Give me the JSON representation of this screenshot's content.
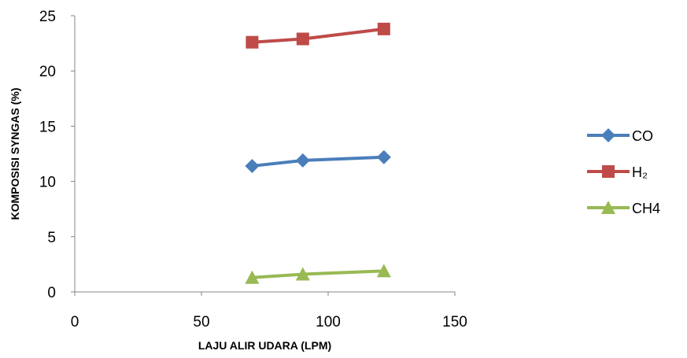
{
  "chart_data": {
    "type": "line",
    "title": "",
    "xlabel": "LAJU ALIR UDARA (LPM)",
    "ylabel": "KOMPOSISI SYNGAS (%)",
    "xlim": [
      0,
      150
    ],
    "ylim": [
      0,
      25
    ],
    "xticks": [
      "0",
      "50",
      "100",
      "150"
    ],
    "yticks": [
      "0",
      "5",
      "10",
      "15",
      "20",
      "25"
    ],
    "grid": false,
    "legend_position": "right",
    "series": [
      {
        "name": "CO",
        "color": "#4a7ebb",
        "marker": "diamond",
        "x": [
          70,
          90,
          122
        ],
        "y": [
          11.4,
          11.9,
          12.2
        ]
      },
      {
        "name": "H₂",
        "color": "#be4b48",
        "marker": "square",
        "x": [
          70,
          90,
          122
        ],
        "y": [
          22.6,
          22.9,
          23.8
        ]
      },
      {
        "name": "CH4",
        "color": "#98b954",
        "marker": "triangle",
        "x": [
          70,
          90,
          122
        ],
        "y": [
          1.3,
          1.6,
          1.9
        ]
      }
    ]
  }
}
